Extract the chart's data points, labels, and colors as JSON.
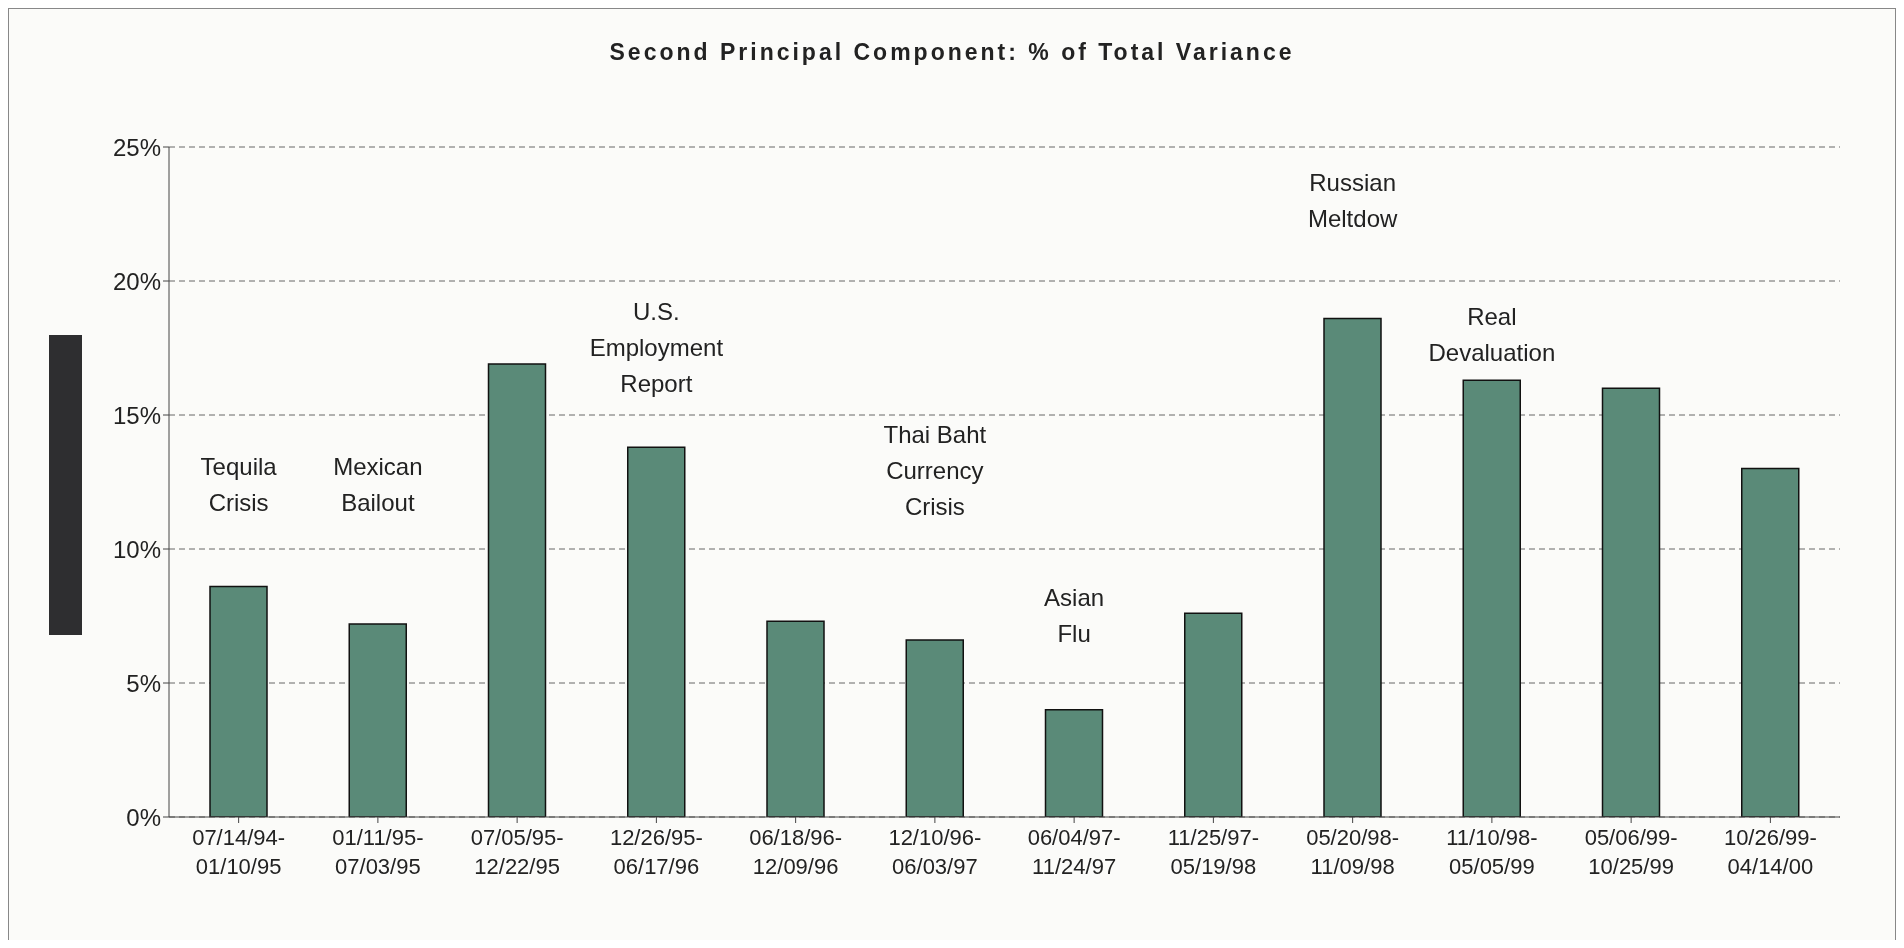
{
  "chart_data": {
    "type": "bar",
    "title": "Second Principal Component: % of Total Variance",
    "categories": [
      "07/14/94-01/10/95",
      "01/11/95-07/03/95",
      "07/05/95-12/22/95",
      "12/26/95-06/17/96",
      "06/18/96-12/09/96",
      "12/10/96-06/03/97",
      "06/04/97-11/24/97",
      "11/25/97-05/19/98",
      "05/20/98-11/09/98",
      "11/10/98-05/05/99",
      "05/06/99-10/25/99",
      "10/26/99-04/14/00"
    ],
    "values": [
      8.6,
      7.2,
      16.9,
      13.8,
      7.3,
      6.6,
      4.0,
      7.6,
      18.6,
      16.3,
      16.0,
      13.0
    ],
    "color": "#5a8a78",
    "ylim": [
      0,
      25
    ],
    "yticks": [
      {
        "value": 0,
        "label": "0%"
      },
      {
        "value": 5,
        "label": "5%"
      },
      {
        "value": 10,
        "label": "10%"
      },
      {
        "value": 15,
        "label": "15%"
      },
      {
        "value": 20,
        "label": "20%"
      },
      {
        "value": 25,
        "label": "25%"
      }
    ],
    "grid": "y",
    "annotations": [
      "Tequila\nCrisis",
      "Mexican\nBailout",
      "U.S.\nEmployment\nReport",
      "Thai Baht\nCurrency\nCrisis",
      "Asian\nFlu",
      "Russian\nMeltdow",
      "Real\nDevaluation"
    ]
  }
}
